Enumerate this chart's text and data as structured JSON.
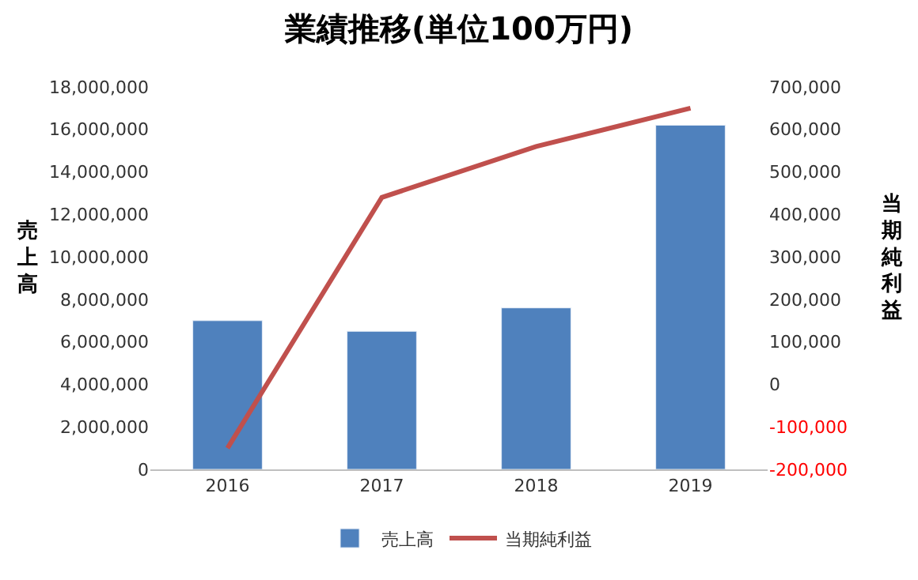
{
  "chart_data": {
    "type": "bar",
    "title": "業績推移(単位100万円)",
    "categories": [
      "2016",
      "2017",
      "2018",
      "2019"
    ],
    "ylabel": "売上高",
    "y2label": "当期純利益",
    "series": [
      {
        "name": "売上高",
        "color": "#4f81bd",
        "values": [
          7000000,
          6500000,
          7600000,
          16200000
        ]
      },
      {
        "name": "当期純利益",
        "type": "line",
        "axis": "y2",
        "color": "#c0504d",
        "marker": "none",
        "values": [
          -150000,
          440000,
          560000,
          650000
        ]
      }
    ],
    "ylim": [
      0,
      18000000
    ],
    "yticks": [
      {
        "value": 0,
        "label": "0"
      },
      {
        "value": 2000000,
        "label": "2,000,000"
      },
      {
        "value": 4000000,
        "label": "4,000,000"
      },
      {
        "value": 6000000,
        "label": "6,000,000"
      },
      {
        "value": 8000000,
        "label": "8,000,000"
      },
      {
        "value": 10000000,
        "label": "10,000,000"
      },
      {
        "value": 12000000,
        "label": "12,000,000"
      },
      {
        "value": 14000000,
        "label": "14,000,000"
      },
      {
        "value": 16000000,
        "label": "16,000,000"
      },
      {
        "value": 18000000,
        "label": "18,000,000"
      }
    ],
    "y2lim": [
      -200000,
      700000
    ],
    "y2ticks": [
      {
        "value": -200000,
        "label": "-200,000"
      },
      {
        "value": -100000,
        "label": "-100,000"
      },
      {
        "value": 0,
        "label": "0"
      },
      {
        "value": 100000,
        "label": "100,000"
      },
      {
        "value": 200000,
        "label": "200,000"
      },
      {
        "value": 300000,
        "label": "300,000"
      },
      {
        "value": 400000,
        "label": "400,000"
      },
      {
        "value": 500000,
        "label": "500,000"
      },
      {
        "value": 600000,
        "label": "600,000"
      },
      {
        "value": 700000,
        "label": "700,000"
      }
    ],
    "legend": "bottom"
  }
}
